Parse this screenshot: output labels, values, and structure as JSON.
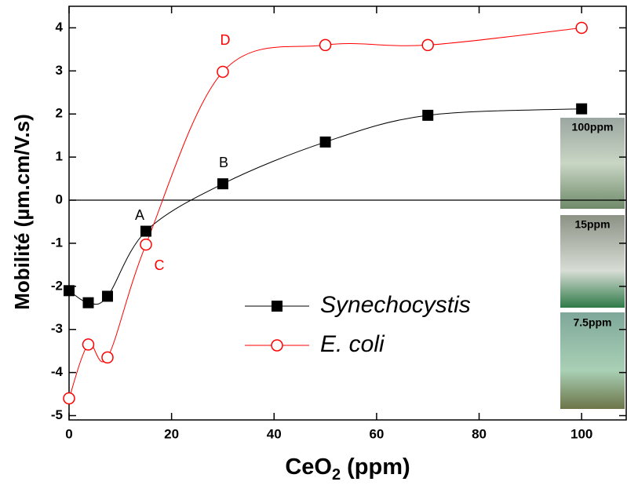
{
  "chart_data": {
    "type": "scatter",
    "xlabel": [
      "CeO",
      "2",
      " (ppm)"
    ],
    "ylabel": "Mobilité (µm.cm/V.s)",
    "xlim": [
      0,
      108.7
    ],
    "ylim": [
      -5.1,
      4.5
    ],
    "xticks": [
      0,
      20,
      40,
      60,
      80,
      100
    ],
    "yticks": [
      -5,
      -4,
      -3,
      -2,
      -1,
      0,
      1,
      2,
      3,
      4
    ],
    "series": [
      {
        "name": "Synechocystis",
        "color": "#000000",
        "marker": "square",
        "x": [
          0,
          3.75,
          7.5,
          15,
          30,
          50,
          70,
          100
        ],
        "values": [
          -2.1,
          -2.38,
          -2.23,
          -0.72,
          0.38,
          1.35,
          1.97,
          2.12
        ]
      },
      {
        "name": "E. coli",
        "color": "#ff0000",
        "marker": "circle",
        "x": [
          0,
          3.75,
          7.5,
          15,
          30,
          50,
          70,
          100
        ],
        "values": [
          -4.6,
          -3.35,
          -3.65,
          -1.03,
          2.98,
          3.6,
          3.6,
          4.0
        ]
      }
    ],
    "annotations": [
      {
        "text": "A",
        "color": "#000000"
      },
      {
        "text": "B",
        "color": "#000000"
      },
      {
        "text": "C",
        "color": "#ff0000"
      },
      {
        "text": "D",
        "color": "#ff0000"
      }
    ],
    "photos": [
      "100ppm",
      "15ppm",
      "7.5ppm"
    ]
  }
}
